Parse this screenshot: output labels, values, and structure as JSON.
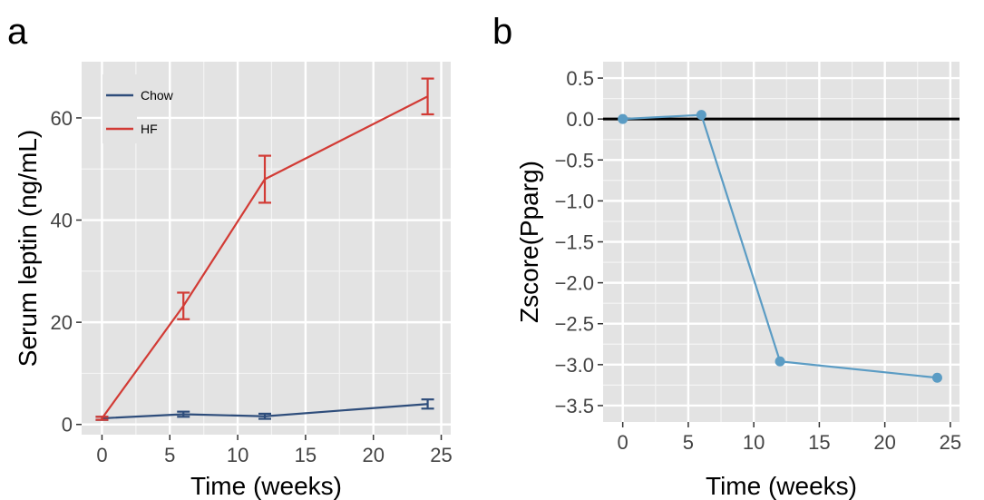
{
  "chart_data": [
    {
      "panel_label": "a",
      "type": "line",
      "xlabel": "Time (weeks)",
      "ylabel": "Serum leptin (ng/mL)",
      "xlim": [
        -1.5,
        25.7
      ],
      "ylim": [
        -2,
        71
      ],
      "xticks": [
        0,
        5,
        10,
        15,
        20,
        25
      ],
      "yticks": [
        0,
        20,
        40,
        60
      ],
      "grid": true,
      "legend": "top-left",
      "series": [
        {
          "name": "Chow",
          "color": "#2E4D7B",
          "x": [
            0,
            6,
            12,
            24
          ],
          "y": [
            1.2,
            2.0,
            1.6,
            4.0
          ],
          "err": [
            0.3,
            0.5,
            0.5,
            0.9
          ]
        },
        {
          "name": "HF",
          "color": "#D23B35",
          "x": [
            0,
            6,
            12,
            24
          ],
          "y": [
            1.2,
            23.2,
            48.0,
            64.2
          ],
          "err": [
            0.3,
            2.6,
            4.6,
            3.5
          ]
        }
      ]
    },
    {
      "panel_label": "b",
      "type": "line",
      "xlabel": "Time (weeks)",
      "ylabel": "Zscore(Pparg)",
      "xlim": [
        -1.5,
        25.7
      ],
      "ylim": [
        -3.7,
        0.7
      ],
      "xticks": [
        0,
        5,
        10,
        15,
        20,
        25
      ],
      "yticks": [
        0.5,
        0.0,
        -0.5,
        -1.0,
        -1.5,
        -2.0,
        -2.5,
        -3.0,
        -3.5
      ],
      "ytick_labels": [
        "0.5",
        "0.0",
        "−0.5",
        "−1.0",
        "−1.5",
        "−2.0",
        "−2.5",
        "−3.0",
        "−3.5"
      ],
      "grid": true,
      "reference_line": 0,
      "series": [
        {
          "color": "#5B9CC4",
          "x": [
            0,
            6,
            12,
            24
          ],
          "y": [
            0.0,
            0.05,
            -2.96,
            -3.16
          ]
        }
      ]
    }
  ]
}
